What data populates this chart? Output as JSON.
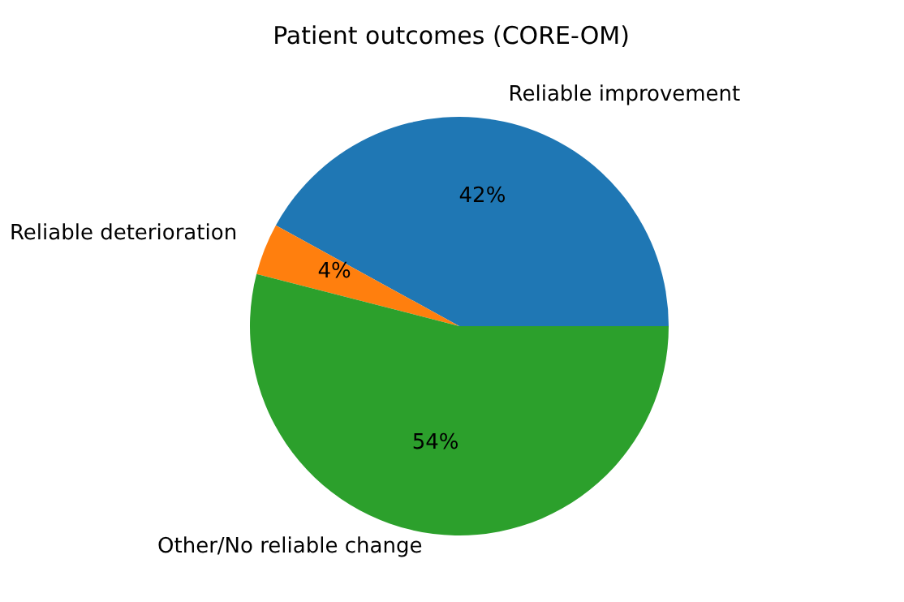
{
  "chart_data": {
    "type": "pie",
    "title": "Patient outcomes (CORE-OM)",
    "categories": [
      "Reliable improvement",
      "Reliable deterioration",
      "Other/No reliable change"
    ],
    "values": [
      42,
      4,
      54
    ],
    "value_labels": [
      "42%",
      "4%",
      "54%"
    ],
    "colors": [
      "#1f77b4",
      "#ff7f0e",
      "#2ca02c"
    ]
  }
}
